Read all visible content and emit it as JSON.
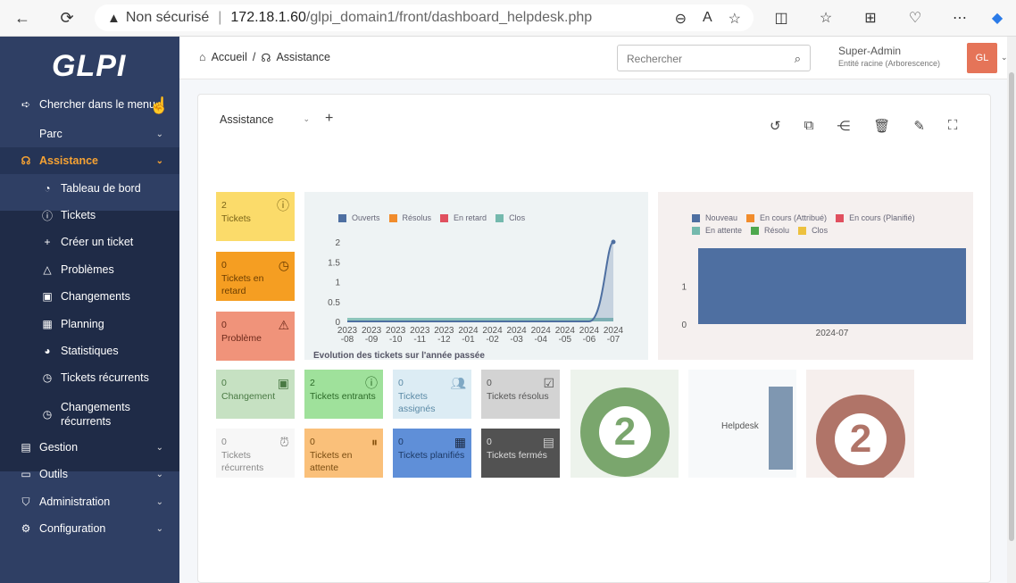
{
  "browser": {
    "back": "←",
    "refresh": "⟳",
    "security": "Non sécurisé",
    "url_host": "172.18.1.60",
    "url_path": "/glpi_domain1/front/dashboard_helpdesk.php"
  },
  "app": {
    "logo": "GLPI"
  },
  "sidebar": {
    "items": [
      {
        "label": "Chercher dans le menu",
        "icon": "arrow-right-icon"
      },
      {
        "label": "Parc",
        "icon": "box-icon"
      },
      {
        "label": "Assistance",
        "icon": "headset-icon"
      },
      {
        "label": "Tableau de bord",
        "icon": "gauge-icon"
      },
      {
        "label": "Tickets",
        "icon": "alert-circle-icon"
      },
      {
        "label": "Créer un ticket",
        "icon": "plus-icon"
      },
      {
        "label": "Problèmes",
        "icon": "warning-icon"
      },
      {
        "label": "Changements",
        "icon": "clipboard-icon"
      },
      {
        "label": "Planning",
        "icon": "calendar-icon"
      },
      {
        "label": "Statistiques",
        "icon": "pie-icon"
      },
      {
        "label": "Tickets récurrents",
        "icon": "clock-icon"
      },
      {
        "label": "Changements récurrents",
        "icon": "clock-icon"
      },
      {
        "label": "Gestion",
        "icon": "wallet-icon"
      },
      {
        "label": "Outils",
        "icon": "briefcase-icon"
      },
      {
        "label": "Administration",
        "icon": "shield-icon"
      },
      {
        "label": "Configuration",
        "icon": "gear-icon"
      }
    ]
  },
  "header": {
    "breadcrumb_home": "Accueil",
    "breadcrumb_sep": "/",
    "breadcrumb_current": "Assistance",
    "search_placeholder": "Rechercher",
    "user_name": "Super-Admin",
    "user_entity": "Entité racine (Arborescence)",
    "avatar": "GL"
  },
  "dashboard": {
    "selector": "Assistance",
    "add": "+"
  },
  "tiles": {
    "tickets": {
      "value": "2",
      "label": "Tickets"
    },
    "late": {
      "value": "0",
      "label": "Tickets en retard"
    },
    "problem": {
      "value": "0",
      "label": "Problème"
    },
    "change": {
      "value": "0",
      "label": "Changement"
    },
    "incoming": {
      "value": "2",
      "label": "Tickets entrants"
    },
    "assigned": {
      "value": "0",
      "label": "Tickets assignés"
    },
    "solved": {
      "value": "0",
      "label": "Tickets résolus"
    },
    "recurrent": {
      "value": "0",
      "label": "Tickets récurrents"
    },
    "waiting": {
      "value": "0",
      "label": "Tickets en attente"
    },
    "planned": {
      "value": "0",
      "label": "Tickets planifiés"
    },
    "closed": {
      "value": "0",
      "label": "Tickets fermés"
    },
    "donut1": {
      "value": "2"
    },
    "donut2": {
      "value": "2"
    },
    "helpdesk": {
      "label": "Helpdesk"
    }
  },
  "chart_data": [
    {
      "type": "area",
      "title": "Évolution des tickets sur l'année passée",
      "series": [
        {
          "name": "Ouverts",
          "color": "#4e6fa1"
        },
        {
          "name": "Résolus",
          "color": "#f18c2c"
        },
        {
          "name": "En retard",
          "color": "#e0505f"
        },
        {
          "name": "Clos",
          "color": "#74b9ad"
        }
      ],
      "x": [
        "2023-08",
        "2023-09",
        "2023-10",
        "2023-11",
        "2023-12",
        "2024-01",
        "2024-02",
        "2024-03",
        "2024-04",
        "2024-05",
        "2024-06",
        "2024-07"
      ],
      "values": [
        0,
        0,
        0,
        0,
        0,
        0,
        0,
        0,
        0,
        0,
        0,
        2
      ],
      "yticks": [
        "0",
        "0.5",
        "1",
        "1.5",
        "2"
      ],
      "ylim": [
        0,
        2
      ]
    },
    {
      "type": "bar",
      "title": "",
      "series": [
        {
          "name": "Nouveau",
          "color": "#4e6fa1"
        },
        {
          "name": "En cours (Attribué)",
          "color": "#f18c2c"
        },
        {
          "name": "En cours (Planifié)",
          "color": "#e0505f"
        },
        {
          "name": "En attente",
          "color": "#74b9ad"
        },
        {
          "name": "Résolu",
          "color": "#4ea84e"
        },
        {
          "name": "Clos",
          "color": "#edc13f"
        }
      ],
      "categories": [
        "2024-07"
      ],
      "values": [
        2
      ],
      "yticks": [
        "0",
        "1"
      ]
    }
  ]
}
